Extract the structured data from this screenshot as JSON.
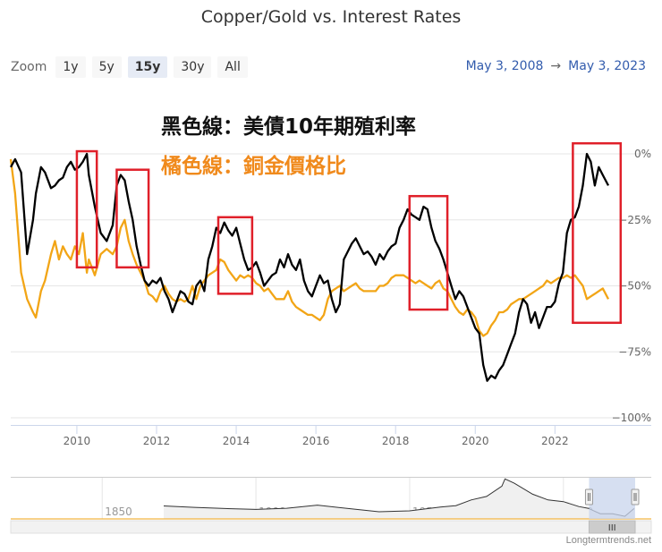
{
  "title": "Copper/Gold vs. Interest Rates",
  "zoom": {
    "label": "Zoom",
    "buttons": [
      "1y",
      "5y",
      "15y",
      "30y",
      "All"
    ],
    "active": "15y"
  },
  "range": {
    "from": "May 3, 2008",
    "arrow": "→",
    "to": "May 3, 2023"
  },
  "credit": "Longtermtrends.net",
  "annotations": {
    "black_line_label": "黑色線：美債10年期殖利率",
    "orange_line_label": "橘色線：銅金價格比"
  },
  "navigator": {
    "labels": [
      "1850",
      "1900",
      "1950",
      "2000"
    ],
    "scroll_glyph": "III"
  },
  "colors": {
    "ten_year_yield": "#000000",
    "copper_gold_ratio": "#f2a516",
    "highlight_box": "#e0202a",
    "navigator_mask": "#c8d4ec"
  },
  "chart_data": {
    "type": "line",
    "title": "Copper/Gold vs. Interest Rates",
    "xlim": [
      2008.34,
      2023.34
    ],
    "x_ticks": [
      "2010",
      "2012",
      "2014",
      "2016",
      "2018",
      "2020",
      "2022"
    ],
    "y_ticks": [
      "0%",
      "−25%",
      "−50%",
      "−75%",
      "−100%"
    ],
    "ylim": [
      -100,
      0
    ],
    "grid": "horizontal",
    "series": [
      {
        "key": "ten_year_yield",
        "x": [
          2008.34,
          2008.45,
          2008.6,
          2008.75,
          2008.9,
          2008.97,
          2009.1,
          2009.2,
          2009.35,
          2009.45,
          2009.55,
          2009.65,
          2009.75,
          2009.85,
          2009.95,
          2010.05,
          2010.15,
          2010.25,
          2010.3,
          2010.45,
          2010.6,
          2010.75,
          2010.9,
          2011.0,
          2011.1,
          2011.2,
          2011.3,
          2011.4,
          2011.5,
          2011.6,
          2011.7,
          2011.8,
          2011.9,
          2012.0,
          2012.1,
          2012.2,
          2012.3,
          2012.4,
          2012.5,
          2012.6,
          2012.7,
          2012.8,
          2012.9,
          2013.0,
          2013.1,
          2013.2,
          2013.3,
          2013.4,
          2013.5,
          2013.6,
          2013.7,
          2013.8,
          2013.9,
          2014.0,
          2014.1,
          2014.2,
          2014.3,
          2014.4,
          2014.5,
          2014.6,
          2014.7,
          2014.8,
          2014.9,
          2015.0,
          2015.1,
          2015.2,
          2015.3,
          2015.4,
          2015.5,
          2015.6,
          2015.7,
          2015.8,
          2015.9,
          2016.0,
          2016.1,
          2016.2,
          2016.3,
          2016.4,
          2016.5,
          2016.6,
          2016.7,
          2016.8,
          2016.9,
          2017.0,
          2017.1,
          2017.2,
          2017.3,
          2017.4,
          2017.5,
          2017.6,
          2017.7,
          2017.8,
          2017.9,
          2018.0,
          2018.1,
          2018.2,
          2018.3,
          2018.4,
          2018.5,
          2018.6,
          2018.7,
          2018.8,
          2018.9,
          2019.0,
          2019.1,
          2019.2,
          2019.3,
          2019.4,
          2019.5,
          2019.6,
          2019.7,
          2019.8,
          2019.9,
          2020.0,
          2020.1,
          2020.2,
          2020.3,
          2020.4,
          2020.5,
          2020.6,
          2020.7,
          2020.8,
          2020.9,
          2021.0,
          2021.1,
          2021.2,
          2021.3,
          2021.4,
          2021.5,
          2021.6,
          2021.7,
          2021.8,
          2021.9,
          2022.0,
          2022.1,
          2022.2,
          2022.3,
          2022.4,
          2022.5,
          2022.6,
          2022.7,
          2022.8,
          2022.9,
          2023.0,
          2023.1,
          2023.2,
          2023.34
        ],
        "y": [
          -5,
          -2,
          -7,
          -38,
          -25,
          -15,
          -5,
          -7,
          -13,
          -12,
          -10,
          -9,
          -5,
          -3,
          -6,
          -5,
          -3,
          0,
          -8,
          -20,
          -30,
          -33,
          -27,
          -12,
          -8,
          -10,
          -18,
          -25,
          -35,
          -42,
          -48,
          -50,
          -48,
          -49,
          -47,
          -52,
          -55,
          -60,
          -56,
          -52,
          -53,
          -56,
          -57,
          -50,
          -48,
          -52,
          -40,
          -35,
          -28,
          -30,
          -26,
          -29,
          -31,
          -28,
          -34,
          -40,
          -44,
          -43,
          -41,
          -45,
          -50,
          -48,
          -46,
          -45,
          -40,
          -43,
          -38,
          -42,
          -44,
          -40,
          -48,
          -52,
          -54,
          -50,
          -46,
          -49,
          -48,
          -55,
          -60,
          -57,
          -40,
          -37,
          -34,
          -32,
          -35,
          -38,
          -37,
          -39,
          -42,
          -38,
          -40,
          -37,
          -35,
          -34,
          -28,
          -25,
          -21,
          -23,
          -24,
          -25,
          -20,
          -21,
          -28,
          -33,
          -36,
          -40,
          -45,
          -50,
          -55,
          -52,
          -54,
          -58,
          -62,
          -66,
          -68,
          -80,
          -86,
          -84,
          -85,
          -82,
          -80,
          -76,
          -72,
          -68,
          -60,
          -55,
          -57,
          -64,
          -60,
          -66,
          -62,
          -58,
          -58,
          -56,
          -49,
          -45,
          -30,
          -25,
          -24,
          -20,
          -12,
          0,
          -3,
          -12,
          -5,
          -8,
          -12
        ]
      },
      {
        "key": "copper_gold_ratio",
        "x": [
          2008.34,
          2008.45,
          2008.6,
          2008.75,
          2008.9,
          2008.97,
          2009.1,
          2009.2,
          2009.35,
          2009.45,
          2009.55,
          2009.65,
          2009.75,
          2009.85,
          2009.95,
          2010.05,
          2010.15,
          2010.25,
          2010.3,
          2010.45,
          2010.6,
          2010.75,
          2010.9,
          2011.0,
          2011.1,
          2011.2,
          2011.3,
          2011.4,
          2011.5,
          2011.6,
          2011.7,
          2011.8,
          2011.9,
          2012.0,
          2012.1,
          2012.2,
          2012.3,
          2012.4,
          2012.5,
          2012.6,
          2012.7,
          2012.8,
          2012.9,
          2013.0,
          2013.1,
          2013.2,
          2013.3,
          2013.4,
          2013.5,
          2013.6,
          2013.7,
          2013.8,
          2013.9,
          2014.0,
          2014.1,
          2014.2,
          2014.3,
          2014.4,
          2014.5,
          2014.6,
          2014.7,
          2014.8,
          2014.9,
          2015.0,
          2015.1,
          2015.2,
          2015.3,
          2015.4,
          2015.5,
          2015.6,
          2015.7,
          2015.8,
          2015.9,
          2016.0,
          2016.1,
          2016.2,
          2016.3,
          2016.4,
          2016.5,
          2016.6,
          2016.7,
          2016.8,
          2016.9,
          2017.0,
          2017.1,
          2017.2,
          2017.3,
          2017.4,
          2017.5,
          2017.6,
          2017.7,
          2017.8,
          2017.9,
          2018.0,
          2018.1,
          2018.2,
          2018.3,
          2018.4,
          2018.5,
          2018.6,
          2018.7,
          2018.8,
          2018.9,
          2019.0,
          2019.1,
          2019.2,
          2019.3,
          2019.4,
          2019.5,
          2019.6,
          2019.7,
          2019.8,
          2019.9,
          2020.0,
          2020.1,
          2020.2,
          2020.3,
          2020.4,
          2020.5,
          2020.6,
          2020.7,
          2020.8,
          2020.9,
          2021.0,
          2021.1,
          2021.2,
          2021.3,
          2021.4,
          2021.5,
          2021.6,
          2021.7,
          2021.8,
          2021.9,
          2022.0,
          2022.1,
          2022.2,
          2022.3,
          2022.4,
          2022.5,
          2022.6,
          2022.7,
          2022.8,
          2022.9,
          2023.0,
          2023.1,
          2023.2,
          2023.34
        ],
        "y": [
          -2,
          -15,
          -45,
          -55,
          -60,
          -62,
          -52,
          -48,
          -38,
          -33,
          -40,
          -35,
          -38,
          -40,
          -35,
          -38,
          -30,
          -45,
          -40,
          -46,
          -38,
          -36,
          -38,
          -35,
          -28,
          -25,
          -33,
          -38,
          -42,
          -45,
          -48,
          -53,
          -54,
          -56,
          -52,
          -50,
          -53,
          -55,
          -56,
          -55,
          -56,
          -55,
          -50,
          -55,
          -50,
          -48,
          -46,
          -45,
          -44,
          -40,
          -41,
          -44,
          -46,
          -48,
          -46,
          -47,
          -46,
          -47,
          -49,
          -50,
          -52,
          -51,
          -53,
          -55,
          -55,
          -55,
          -52,
          -56,
          -58,
          -59,
          -60,
          -61,
          -61,
          -62,
          -63,
          -61,
          -55,
          -52,
          -51,
          -50,
          -52,
          -51,
          -50,
          -49,
          -51,
          -52,
          -52,
          -52,
          -52,
          -50,
          -50,
          -49,
          -47,
          -46,
          -46,
          -46,
          -47,
          -48,
          -49,
          -48,
          -49,
          -50,
          -51,
          -49,
          -48,
          -51,
          -52,
          -55,
          -58,
          -60,
          -61,
          -59,
          -60,
          -62,
          -67,
          -69,
          -68,
          -65,
          -63,
          -60,
          -60,
          -59,
          -57,
          -56,
          -55,
          -55,
          -54,
          -53,
          -52,
          -51,
          -50,
          -48,
          -49,
          -48,
          -47,
          -47,
          -46,
          -47,
          -46,
          -48,
          -50,
          -55,
          -54,
          -53,
          -52,
          -51,
          -55
        ]
      }
    ],
    "highlight_boxes": [
      {
        "x0": 2010.0,
        "x1": 2010.5,
        "y0": -43,
        "y1": 1
      },
      {
        "x0": 2011.0,
        "x1": 2011.8,
        "y0": -43,
        "y1": -6
      },
      {
        "x0": 2013.55,
        "x1": 2014.4,
        "y0": -53,
        "y1": -24
      },
      {
        "x0": 2018.35,
        "x1": 2019.3,
        "y0": -59,
        "y1": -16
      },
      {
        "x0": 2022.45,
        "x1": 2023.65,
        "y0": -64,
        "y1": 4
      }
    ],
    "navigator": {
      "x_ticks": [
        "1850",
        "1900",
        "1950",
        "2000"
      ],
      "history_x": [
        1870,
        1880,
        1890,
        1900,
        1910,
        1920,
        1930,
        1940,
        1950,
        1960,
        1965,
        1970,
        1975,
        1980,
        1981,
        1984,
        1990,
        1995,
        2000,
        2005,
        2008,
        2012,
        2016,
        2020,
        2023
      ],
      "history_y": [
        4.5,
        4.0,
        3.6,
        3.3,
        3.7,
        4.8,
        3.6,
        2.5,
        2.8,
        4.1,
        4.6,
        6.6,
        7.8,
        11.4,
        13.9,
        12.4,
        8.6,
        6.6,
        6.0,
        4.3,
        3.7,
        1.8,
        1.8,
        0.9,
        3.6
      ],
      "window": [
        2008.34,
        2023.34
      ]
    }
  }
}
